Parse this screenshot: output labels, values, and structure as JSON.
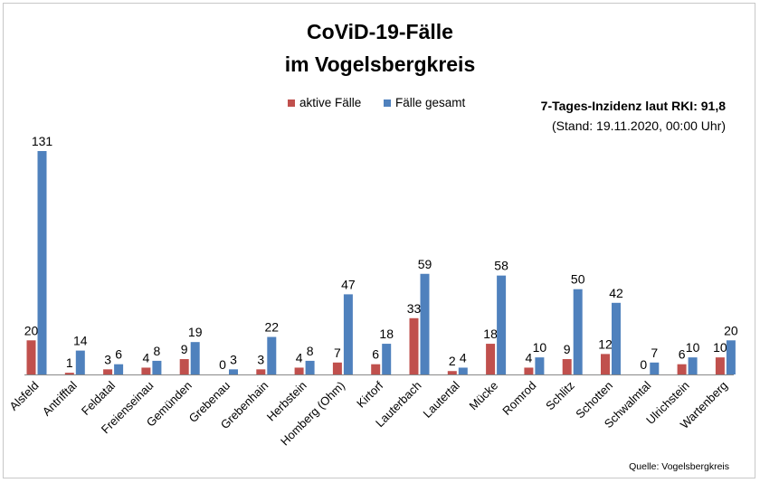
{
  "chart_data": {
    "type": "bar",
    "title_line1": "CoViD-19-Fälle",
    "title_line2": "im Vogelsbergkreis",
    "info_line1": "7-Tages-Inzidenz laut RKI: 91,8",
    "info_line2": "(Stand: 19.11.2020, 00:00 Uhr)",
    "source": "Quelle: Vogelsbergkreis",
    "categories": [
      "Alsfeld",
      "Antrifftal",
      "Feldatal",
      "Freienseinau",
      "Gemünden",
      "Grebenau",
      "Grebenhain",
      "Herbstein",
      "Homberg (Ohm)",
      "Kirtorf",
      "Lauterbach",
      "Lautertal",
      "Mücke",
      "Romrod",
      "Schlitz",
      "Schotten",
      "Schwalmtal",
      "Ulrichstein",
      "Wartenberg"
    ],
    "series": [
      {
        "name": "aktive Fälle",
        "color": "#c0504d",
        "values": [
          20,
          1,
          3,
          4,
          9,
          0,
          3,
          4,
          7,
          6,
          33,
          2,
          18,
          4,
          9,
          12,
          0,
          6,
          10
        ]
      },
      {
        "name": "Fälle gesamt",
        "color": "#4f81bd",
        "values": [
          131,
          14,
          6,
          8,
          19,
          3,
          22,
          8,
          47,
          18,
          59,
          4,
          58,
          10,
          50,
          42,
          7,
          10,
          20
        ]
      }
    ],
    "ylim": [
      0,
      131
    ],
    "grid": false,
    "legend_position": "top-center"
  }
}
